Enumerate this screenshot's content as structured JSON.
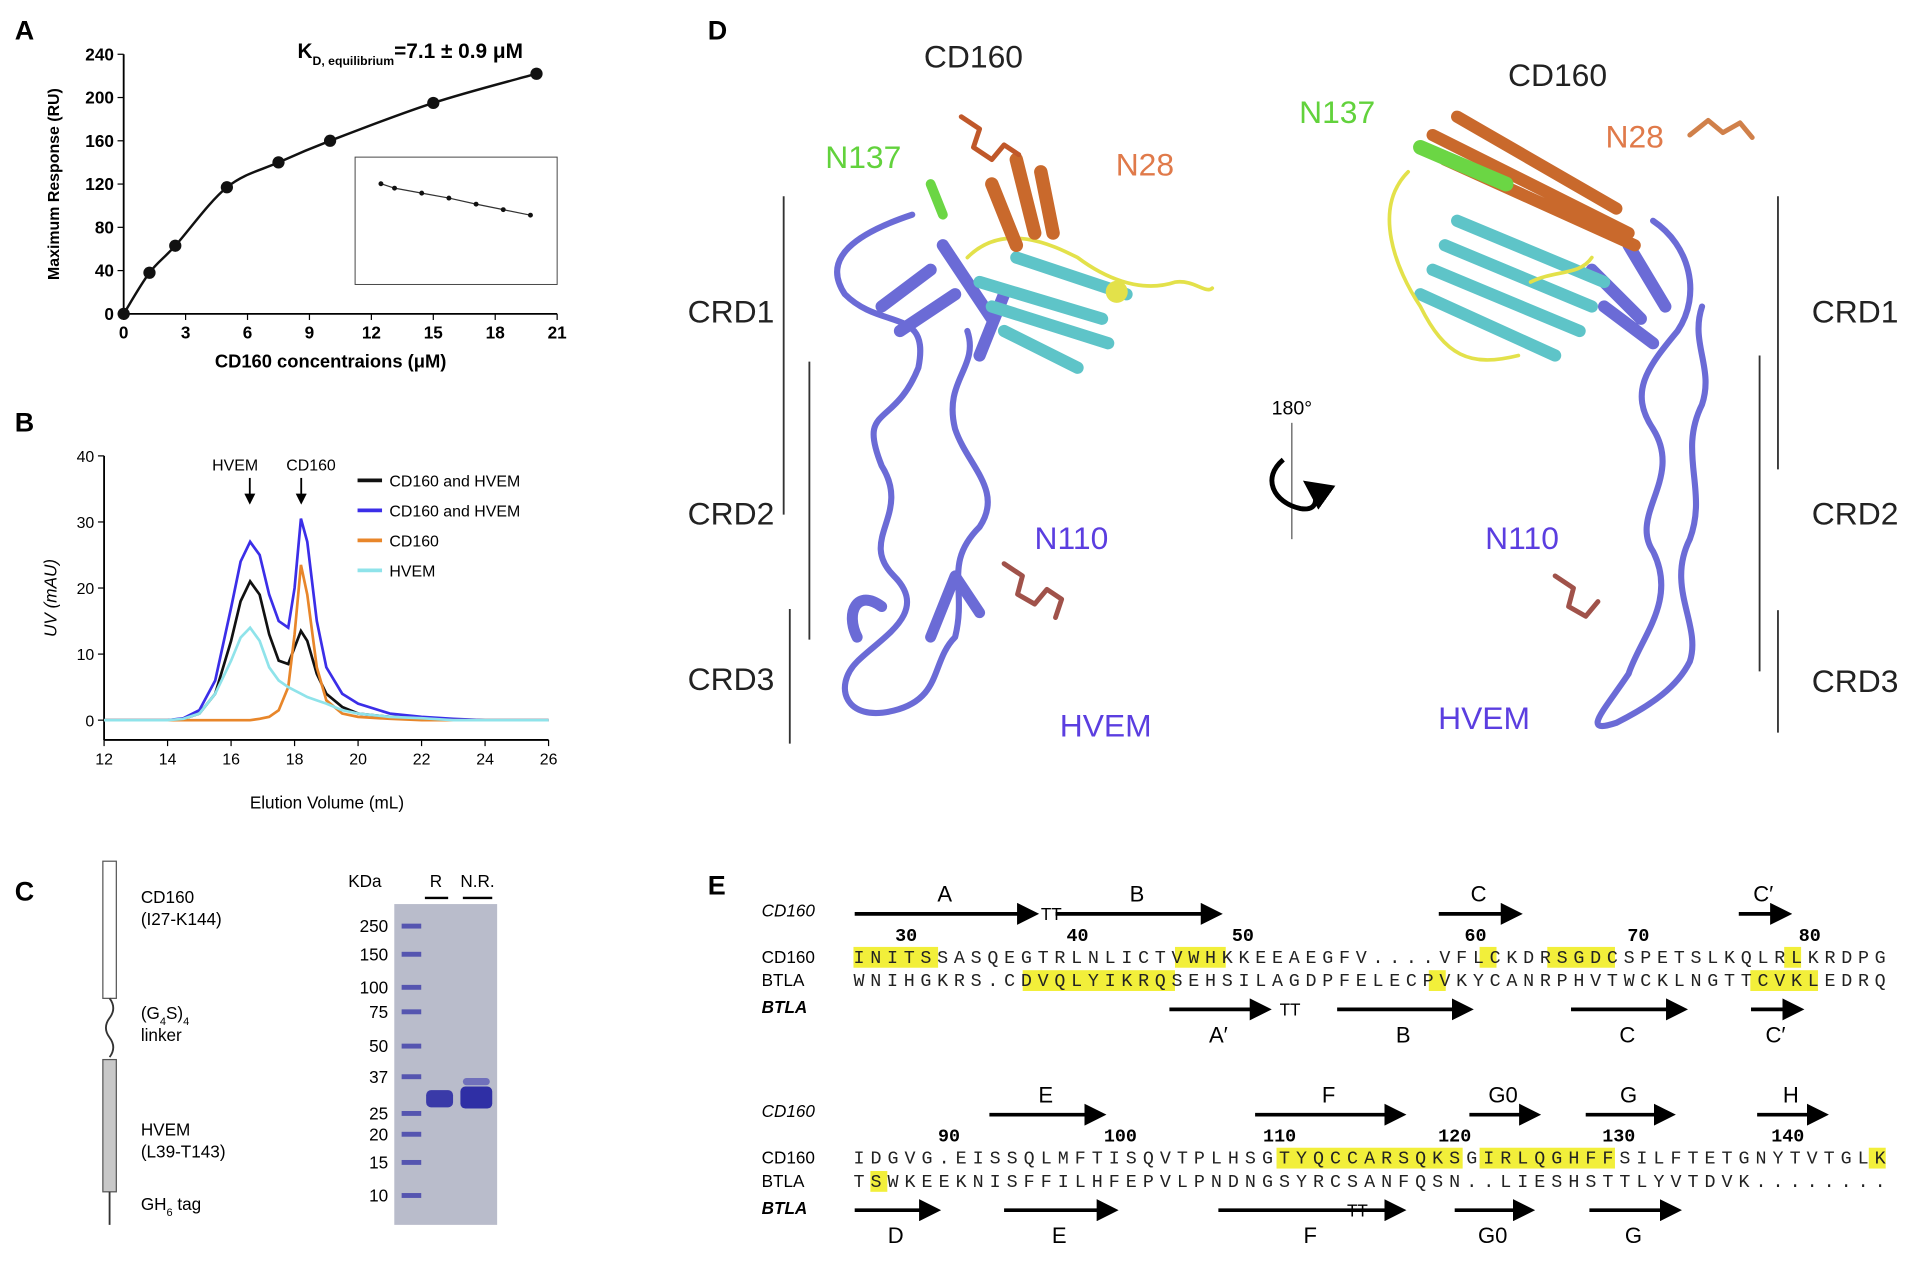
{
  "chart_data": [
    {
      "type": "scatter",
      "panel": "A",
      "title": {
        "main": "K",
        "sub": "D, equilibrium",
        "rest": "=7.1 ± 0.9 μM"
      },
      "x_label": "CD160 concentraions (μM)",
      "y_label": "Maximum Response (RU)",
      "x": [
        0,
        1.25,
        2.5,
        5,
        7.5,
        10,
        15,
        20
      ],
      "values": [
        0,
        38,
        63,
        117,
        140,
        160,
        195,
        222
      ],
      "color": "#111111",
      "xlim": [
        0,
        21
      ],
      "xticks": [
        0,
        3,
        6,
        9,
        12,
        15,
        18,
        21
      ],
      "ylim": [
        0,
        240
      ],
      "yticks": [
        0,
        40,
        80,
        120,
        160,
        200,
        240
      ],
      "inset": {
        "x": [
          150,
          300,
          600,
          900,
          1200,
          1500,
          1800
        ],
        "values": [
          165,
          157,
          148,
          139,
          128,
          118,
          108
        ],
        "xlim": [
          0,
          2000
        ],
        "ylim": [
          0,
          200
        ]
      }
    },
    {
      "type": "line",
      "panel": "B",
      "x_label": "Elution Volume (mL)",
      "y_label": "UV (mAU)",
      "annotations": [
        "HVEM",
        "CD160"
      ],
      "x": [
        12,
        13,
        14,
        14.5,
        15,
        15.5,
        16,
        16.3,
        16.6,
        16.9,
        17.2,
        17.5,
        17.8,
        18.0,
        18.2,
        18.4,
        18.7,
        19,
        19.5,
        20,
        21,
        22,
        23,
        24,
        26
      ],
      "series": [
        {
          "name": "CD160 and HVEM",
          "color": "#111111",
          "values": [
            0,
            0,
            0,
            0.2,
            1,
            4,
            12,
            18,
            21,
            19,
            13,
            9,
            8.5,
            11,
            13.5,
            12,
            7,
            4,
            2,
            1,
            0.5,
            0.3,
            0.1,
            0,
            0
          ]
        },
        {
          "name": "CD160 and HVEM",
          "color": "#3b2ee8",
          "values": [
            0,
            0,
            0,
            0.3,
            1.5,
            6,
            17,
            24,
            27,
            25,
            19,
            15,
            14,
            20,
            30.5,
            27,
            15,
            8,
            4,
            2.5,
            1,
            0.5,
            0.2,
            0,
            0
          ]
        },
        {
          "name": "CD160",
          "color": "#e8862a",
          "values": [
            0,
            0,
            0,
            0,
            0,
            0,
            0,
            0,
            0,
            0.2,
            0.5,
            1.5,
            5,
            13,
            23.5,
            19,
            8,
            3,
            1,
            0.5,
            0.2,
            0,
            0,
            0,
            0
          ]
        },
        {
          "name": "HVEM",
          "color": "#8fe3ea",
          "values": [
            0,
            0,
            0,
            0.2,
            1,
            4,
            9,
            12.5,
            14,
            12,
            8,
            6,
            5,
            4.5,
            4,
            3.5,
            3,
            2.5,
            1.5,
            1,
            0.5,
            0.3,
            0,
            0,
            0
          ]
        }
      ],
      "xlim": [
        12,
        26
      ],
      "xticks": [
        12,
        14,
        16,
        18,
        20,
        22,
        24,
        26
      ],
      "ylim": [
        -3,
        40
      ],
      "yticks": [
        0,
        10,
        20,
        30,
        40
      ]
    }
  ],
  "panel_c": {
    "label": "C",
    "cd160": "CD160",
    "cd160_range": "(I27-K144)",
    "linker": [
      "(G",
      "4",
      "S)",
      "4"
    ],
    "linker_word": "linker",
    "hvem": "HVEM",
    "hvem_range": "(L39-T143)",
    "tag": [
      "GH",
      "6",
      " tag"
    ],
    "gel": {
      "unit": "KDa",
      "lanes": [
        "R",
        "N.R."
      ],
      "markers": [
        250,
        150,
        100,
        75,
        50,
        37,
        25,
        20,
        15,
        10
      ]
    }
  },
  "panel_d": {
    "label": "D",
    "rotation": "180°",
    "left": {
      "title": "CD160",
      "n137": "N137",
      "n28": "N28",
      "crd1": "CRD1",
      "crd2": "CRD2",
      "crd3": "CRD3",
      "n110": "N110",
      "hvem": "HVEM"
    },
    "right": {
      "title": "CD160",
      "n137": "N137",
      "n28": "N28",
      "crd1": "CRD1",
      "crd2": "CRD2",
      "crd3": "CRD3",
      "n110": "N110",
      "hvem": "HVEM"
    }
  },
  "panel_e": {
    "label": "E",
    "blocks": [
      {
        "top_track": "CD160",
        "bottom_track": "BTLA",
        "numbers": [
          30,
          40,
          50,
          60,
          70,
          80
        ],
        "rows": [
          {
            "name": "CD160",
            "seq": "INITSSASQEGTRLNLICTVWHKKEEAEGFV....VFLCKDRSGDCSPETSLKQLRLKRDPG"
          },
          {
            "name": "BTLA",
            "seq": "WNIHGKRS.CDVQLYIKRQSEHSILAGDPFELECPVKYCANRPHVTWCKLNGTTCVKLEDRQ"
          }
        ],
        "top_labels": [
          "A",
          "TT",
          "B",
          "C",
          "C′"
        ],
        "bottom_labels": [
          "A′",
          "TT",
          "B",
          "C",
          "C′"
        ]
      },
      {
        "top_track": "CD160",
        "bottom_track": "BTLA",
        "numbers": [
          90,
          100,
          110,
          120,
          130,
          140
        ],
        "rows": [
          {
            "name": "CD160",
            "seq": "IDGVG.EISSQLMFTISQVTPLHSGTYQCCARSQKSGIRLQGHFFSILFTETGNYTVTGLK"
          },
          {
            "name": "BTLA",
            "seq": "TSWKEEKNISFFILHFEPVLPNDNGSYRCSANFQSN..LIESHSTTLYVTDVK........"
          }
        ],
        "top_labels": [
          "E",
          "F",
          "G0",
          "G",
          "H"
        ],
        "bottom_labels": [
          "D",
          "E",
          "TT",
          "F",
          "G0",
          "G"
        ]
      }
    ]
  }
}
